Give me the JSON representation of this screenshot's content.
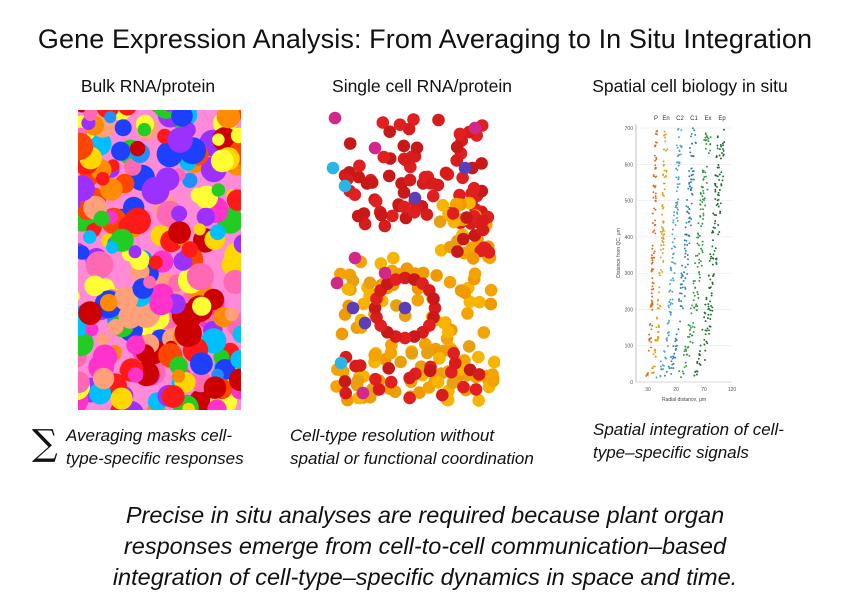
{
  "title": "Gene Expression Analysis: From Averaging to In Situ Integration",
  "columns": [
    {
      "heading": "Bulk RNA/protein",
      "caption_line1": "Averaging masks cell-",
      "caption_line2": "type-specific responses",
      "symbol": "∑"
    },
    {
      "heading": "Single cell RNA/protein",
      "caption_line1": "Cell-type resolution without",
      "caption_line2": "spatial or functional coordination"
    },
    {
      "heading": "Spatial cell biology in situ",
      "caption_line1": "Spatial integration of cell-",
      "caption_line2": "type–specific signals"
    }
  ],
  "conclusion": {
    "line1": "Precise in situ analyses are required because plant organ",
    "line2": "responses emerge from cell-to-cell communication–based",
    "line3": "integration of cell-type–specific dynamics in space and time."
  },
  "spatial_plot": {
    "ylabel": "Distance from QC, μm",
    "xlabel": "Radial distance, μm",
    "yticks": [
      "0",
      "100",
      "200",
      "300",
      "400",
      "500",
      "600",
      "700"
    ],
    "xticks": [
      "30",
      "20",
      "70",
      "120"
    ],
    "series_labels": [
      "P",
      "En",
      "C2",
      "C1",
      "Ex",
      "Ep"
    ],
    "series_colors": [
      "#e06a1f",
      "#e0a21a",
      "#4aa3d6",
      "#2e7fb8",
      "#2f9a45",
      "#1e6e2c"
    ]
  },
  "palettes": {
    "bulk": [
      "#ff1a1a",
      "#ff8c00",
      "#ffd700",
      "#ffff33",
      "#22cc22",
      "#1f3fff",
      "#1e90ff",
      "#9b30ff",
      "#ff69b4",
      "#ff33cc",
      "#ffa07a",
      "#cc0000",
      "#ff4500",
      "#00bfff"
    ],
    "single": [
      "#d81b1b",
      "#e63a1a",
      "#f5a300",
      "#f7b500",
      "#d1288a",
      "#5a3fb8",
      "#29b6e6"
    ]
  }
}
